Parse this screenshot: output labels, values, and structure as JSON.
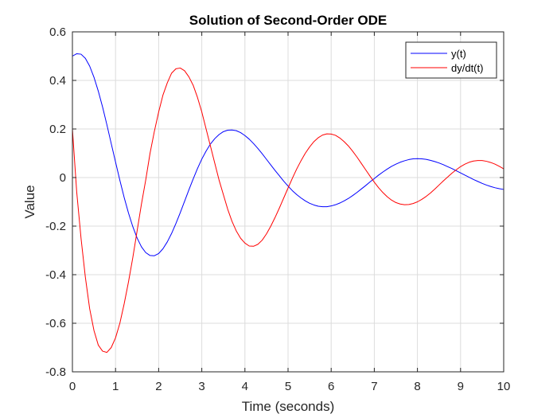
{
  "chart_data": {
    "type": "line",
    "title": "Solution of Second-Order ODE",
    "xlabel": "Time (seconds)",
    "ylabel": "Value",
    "xlim": [
      0,
      10
    ],
    "ylim": [
      -0.8,
      0.6
    ],
    "xticks": [
      0,
      1,
      2,
      3,
      4,
      5,
      6,
      7,
      8,
      9,
      10
    ],
    "xtick_labels": [
      "0",
      "1",
      "2",
      "3",
      "4",
      "5",
      "6",
      "7",
      "8",
      "9",
      "10"
    ],
    "yticks": [
      0.6,
      0.4,
      0.2,
      0,
      -0.2,
      -0.4,
      -0.6,
      -0.8
    ],
    "ytick_labels": [
      "0.6",
      "0.4",
      "0.2",
      "0",
      "-0.2",
      "-0.4",
      "-0.6",
      "-0.8"
    ],
    "grid": true,
    "legend_position": "top-right",
    "series": [
      {
        "name": "y(t)",
        "color": "#0000ff",
        "x": [
          0,
          0.1,
          0.2,
          0.3,
          0.4,
          0.5,
          0.6,
          0.7,
          0.8,
          0.9,
          1.0,
          1.1,
          1.2,
          1.3,
          1.4,
          1.5,
          1.6,
          1.7,
          1.8,
          1.9,
          2.0,
          2.1,
          2.2,
          2.3,
          2.4,
          2.5,
          2.6,
          2.7,
          2.8,
          2.9,
          3.0,
          3.1,
          3.2,
          3.3,
          3.4,
          3.5,
          3.6,
          3.7,
          3.8,
          3.9,
          4.0,
          4.1,
          4.2,
          4.3,
          4.4,
          4.5,
          4.6,
          4.7,
          4.8,
          4.9,
          5.0,
          5.1,
          5.2,
          5.3,
          5.4,
          5.5,
          5.6,
          5.7,
          5.8,
          5.9,
          6.0,
          6.1,
          6.2,
          6.3,
          6.4,
          6.5,
          6.6,
          6.7,
          6.8,
          6.9,
          7.0,
          7.1,
          7.2,
          7.3,
          7.4,
          7.5,
          7.6,
          7.7,
          7.8,
          7.9,
          8.0,
          8.1,
          8.2,
          8.3,
          8.4,
          8.5,
          8.6,
          8.7,
          8.8,
          8.9,
          9.0,
          9.1,
          9.2,
          9.3,
          9.4,
          9.5,
          9.6,
          9.7,
          9.8,
          9.9,
          10.0
        ],
        "y": [
          0.5,
          0.51,
          0.508,
          0.491,
          0.459,
          0.413,
          0.356,
          0.29,
          0.217,
          0.14,
          0.064,
          -0.011,
          -0.082,
          -0.146,
          -0.202,
          -0.249,
          -0.285,
          -0.309,
          -0.321,
          -0.322,
          -0.313,
          -0.293,
          -0.265,
          -0.23,
          -0.189,
          -0.145,
          -0.098,
          -0.051,
          -0.006,
          0.037,
          0.076,
          0.109,
          0.138,
          0.16,
          0.177,
          0.189,
          0.195,
          0.196,
          0.193,
          0.185,
          0.173,
          0.158,
          0.14,
          0.12,
          0.098,
          0.075,
          0.052,
          0.029,
          0.007,
          -0.015,
          -0.035,
          -0.054,
          -0.07,
          -0.084,
          -0.096,
          -0.106,
          -0.113,
          -0.118,
          -0.12,
          -0.12,
          -0.117,
          -0.112,
          -0.105,
          -0.096,
          -0.086,
          -0.074,
          -0.061,
          -0.047,
          -0.033,
          -0.018,
          -0.004,
          0.01,
          0.023,
          0.035,
          0.046,
          0.055,
          0.063,
          0.069,
          0.074,
          0.077,
          0.078,
          0.077,
          0.075,
          0.071,
          0.066,
          0.06,
          0.053,
          0.045,
          0.037,
          0.028,
          0.019,
          0.01,
          0.001,
          -0.008,
          -0.016,
          -0.024,
          -0.031,
          -0.037,
          -0.042,
          -0.046,
          -0.049
        ]
      },
      {
        "name": "dy/dt(t)",
        "color": "#ff0000",
        "x": [
          0,
          0.1,
          0.2,
          0.3,
          0.4,
          0.5,
          0.6,
          0.7,
          0.8,
          0.9,
          1.0,
          1.1,
          1.2,
          1.3,
          1.4,
          1.5,
          1.6,
          1.7,
          1.8,
          1.9,
          2.0,
          2.1,
          2.2,
          2.3,
          2.4,
          2.5,
          2.6,
          2.7,
          2.8,
          2.9,
          3.0,
          3.1,
          3.2,
          3.3,
          3.4,
          3.5,
          3.6,
          3.7,
          3.8,
          3.9,
          4.0,
          4.1,
          4.2,
          4.3,
          4.4,
          4.5,
          4.6,
          4.7,
          4.8,
          4.9,
          5.0,
          5.1,
          5.2,
          5.3,
          5.4,
          5.5,
          5.6,
          5.7,
          5.8,
          5.9,
          6.0,
          6.1,
          6.2,
          6.3,
          6.4,
          6.5,
          6.6,
          6.7,
          6.8,
          6.9,
          7.0,
          7.1,
          7.2,
          7.3,
          7.4,
          7.5,
          7.6,
          7.7,
          7.8,
          7.9,
          8.0,
          8.1,
          8.2,
          8.3,
          8.4,
          8.5,
          8.6,
          8.7,
          8.8,
          8.9,
          9.0,
          9.1,
          9.2,
          9.3,
          9.4,
          9.5,
          9.6,
          9.7,
          9.8,
          9.9,
          10.0
        ],
        "y": [
          0.2,
          -0.06,
          -0.25,
          -0.41,
          -0.54,
          -0.63,
          -0.69,
          -0.715,
          -0.72,
          -0.7,
          -0.66,
          -0.6,
          -0.52,
          -0.43,
          -0.33,
          -0.22,
          -0.11,
          -0.01,
          0.1,
          0.19,
          0.27,
          0.34,
          0.39,
          0.43,
          0.448,
          0.451,
          0.44,
          0.415,
          0.38,
          0.33,
          0.27,
          0.2,
          0.13,
          0.06,
          -0.01,
          -0.07,
          -0.13,
          -0.18,
          -0.22,
          -0.25,
          -0.27,
          -0.282,
          -0.283,
          -0.275,
          -0.258,
          -0.232,
          -0.2,
          -0.164,
          -0.125,
          -0.084,
          -0.043,
          -0.003,
          0.035,
          0.069,
          0.1,
          0.126,
          0.148,
          0.164,
          0.175,
          0.18,
          0.179,
          0.174,
          0.163,
          0.148,
          0.13,
          0.108,
          0.084,
          0.058,
          0.032,
          0.006,
          -0.019,
          -0.042,
          -0.062,
          -0.079,
          -0.093,
          -0.103,
          -0.109,
          -0.112,
          -0.111,
          -0.107,
          -0.1,
          -0.09,
          -0.078,
          -0.064,
          -0.048,
          -0.031,
          -0.014,
          0.002,
          0.018,
          0.032,
          0.045,
          0.055,
          0.063,
          0.068,
          0.07,
          0.07,
          0.067,
          0.062,
          0.055,
          0.046,
          0.036
        ]
      }
    ]
  }
}
